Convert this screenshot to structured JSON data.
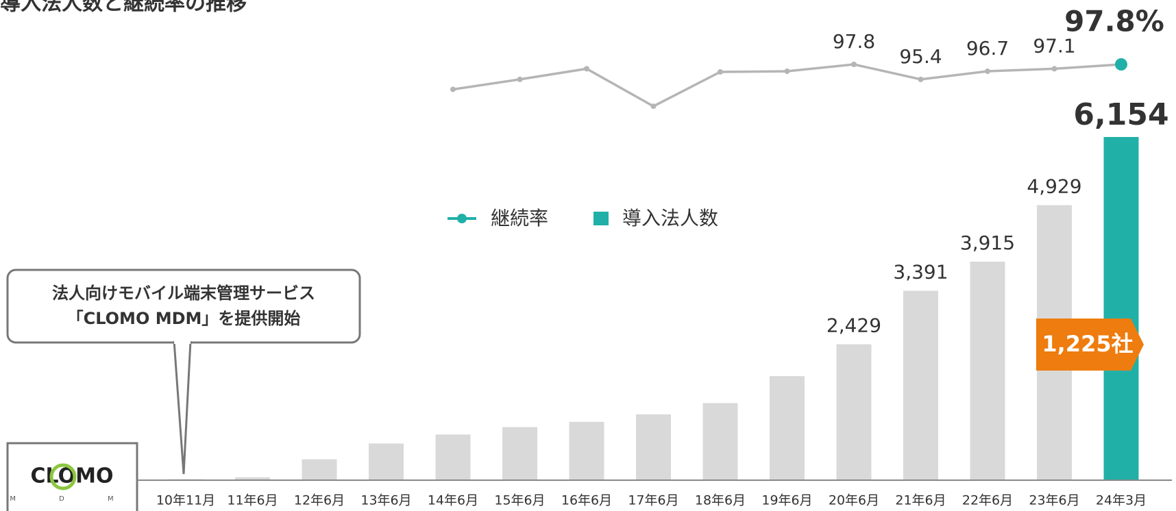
{
  "chart_data": {
    "type": "bar_line",
    "title": "導入法人数と継続率の推移",
    "categories": [
      "10年11月",
      "11年6月",
      "12年6月",
      "13年6月",
      "14年6月",
      "15年6月",
      "16年6月",
      "17年6月",
      "18年6月",
      "19年6月",
      "20年6月",
      "21年6月",
      "22年6月",
      "23年6月",
      "24年3月"
    ],
    "series": [
      {
        "name": "継続率",
        "color": "#20b0a8",
        "line_color": "#b5b5b5",
        "values": [
          null,
          null,
          null,
          null,
          93.8,
          95.4,
          97.1,
          91.1,
          96.6,
          96.7,
          97.8,
          95.4,
          96.7,
          97.1,
          97.8
        ],
        "value_labels": [
          null,
          null,
          null,
          null,
          null,
          null,
          null,
          null,
          null,
          null,
          "97.8",
          "95.4",
          "96.7",
          "97.1",
          "97.8%"
        ]
      },
      {
        "name": "導入法人数",
        "color": "#20b0a8",
        "bar_colors": [
          "#d9d9d9",
          "#d9d9d9",
          "#d9d9d9",
          "#d9d9d9",
          "#d9d9d9",
          "#d9d9d9",
          "#d9d9d9",
          "#d9d9d9",
          "#d9d9d9",
          "#d9d9d9",
          "#d9d9d9",
          "#d9d9d9",
          "#d9d9d9",
          "#d9d9d9",
          "#20b0a8"
        ],
        "values": [
          5,
          40,
          363,
          646,
          808,
          942,
          1036,
          1171,
          1373,
          1857,
          2429,
          3391,
          3915,
          4929,
          6154
        ],
        "value_labels": [
          null,
          null,
          null,
          null,
          null,
          null,
          null,
          null,
          null,
          null,
          "2,429",
          "3,391",
          "3,915",
          "4,929",
          "6,154"
        ]
      }
    ],
    "annotations": {
      "callout": [
        "法人向けモバイル端末管理サービス",
        "「CLOMO MDM」を提供開始"
      ],
      "increase": "1,225社",
      "logo": "CLOMO",
      "logo_sub": "M D M"
    }
  }
}
